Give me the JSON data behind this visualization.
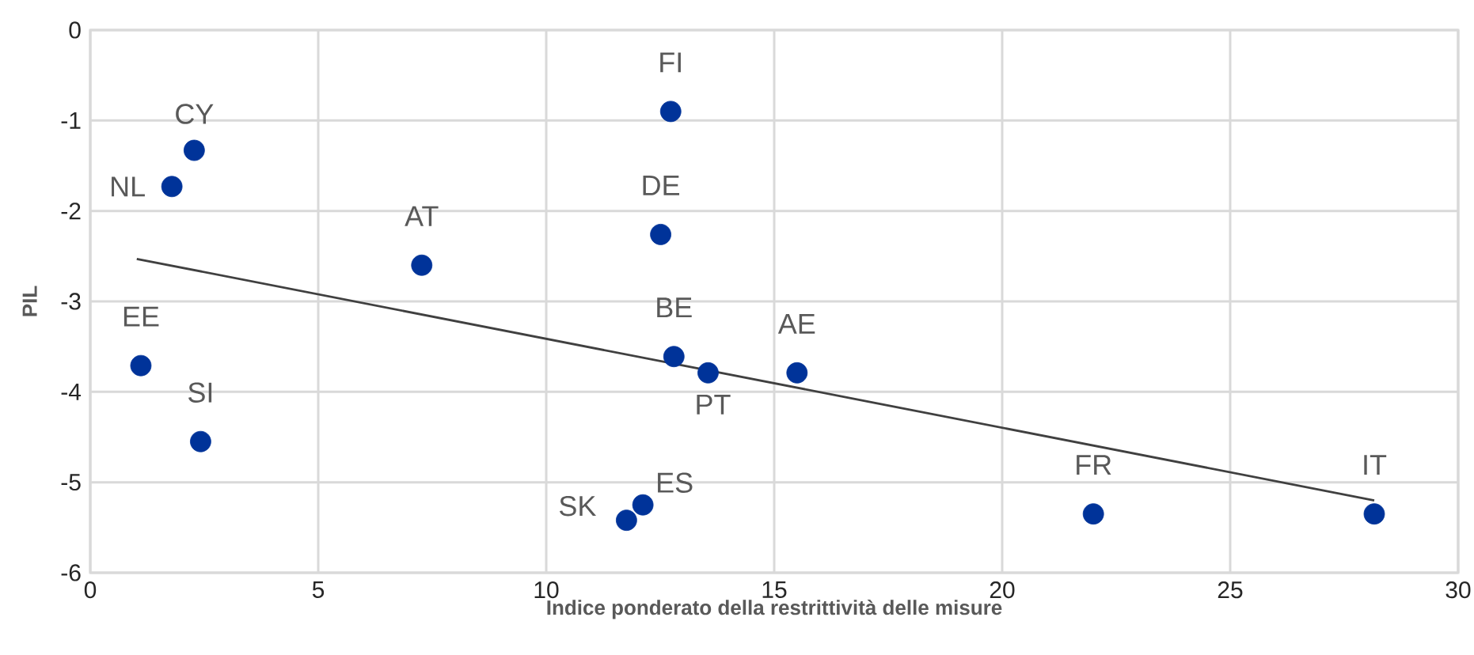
{
  "chart_data": {
    "type": "scatter",
    "xlabel": "Indice ponderato della restrittività delle misure",
    "ylabel": "PIL",
    "xlim": [
      0,
      30
    ],
    "ylim": [
      -6,
      0
    ],
    "xticks": [
      0,
      5,
      10,
      15,
      20,
      25,
      30
    ],
    "yticks": [
      -6,
      -5,
      -4,
      -3,
      -2,
      -1,
      0
    ],
    "grid": true,
    "marker": "circle",
    "series": [
      {
        "color": "#003399",
        "x": [
          2.28,
          1.79,
          12.73,
          12.51,
          7.27,
          1.11,
          2.42,
          12.8,
          13.55,
          15.5,
          12.12,
          11.76,
          22.0,
          28.16
        ],
        "values": [
          -1.33,
          -1.73,
          -0.9,
          -2.26,
          -2.6,
          -3.71,
          -4.55,
          -3.61,
          -3.79,
          -3.79,
          -5.25,
          -5.42,
          -5.35,
          -5.35
        ]
      },
      {
        "type": "line",
        "marker": "none",
        "color": "#404040",
        "x": [
          1.02,
          28.16
        ],
        "values": [
          -2.53,
          -5.2
        ]
      }
    ],
    "annotations": [
      {
        "text": "CY",
        "x": 2.28,
        "y": -1.33
      },
      {
        "text": "NL",
        "x": 1.79,
        "y": -1.73
      },
      {
        "text": "FI",
        "x": 12.73,
        "y": -0.9
      },
      {
        "text": "DE",
        "x": 12.51,
        "y": -2.26
      },
      {
        "text": "AT",
        "x": 7.27,
        "y": -2.6
      },
      {
        "text": "EE",
        "x": 1.11,
        "y": -3.71
      },
      {
        "text": "SI",
        "x": 2.42,
        "y": -4.55
      },
      {
        "text": "BE",
        "x": 12.8,
        "y": -3.61
      },
      {
        "text": "PT",
        "x": 13.55,
        "y": -3.79
      },
      {
        "text": "AE",
        "x": 15.5,
        "y": -3.79
      },
      {
        "text": "ES",
        "x": 12.12,
        "y": -5.25
      },
      {
        "text": "SK",
        "x": 11.76,
        "y": -5.42
      },
      {
        "text": "FR",
        "x": 22.0,
        "y": -5.35
      },
      {
        "text": "IT",
        "x": 28.16,
        "y": -5.35
      }
    ]
  }
}
